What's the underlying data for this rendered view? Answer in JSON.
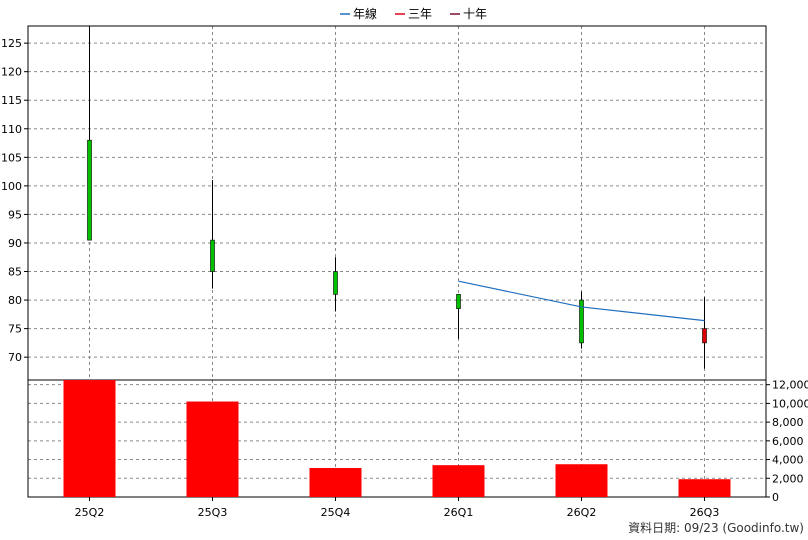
{
  "chart_data": {
    "type": "candlestick",
    "legend": [
      {
        "label": "年線",
        "color": "#1f6fbf"
      },
      {
        "label": "三年",
        "color": "#e0001b"
      },
      {
        "label": "十年",
        "color": "#7a1030"
      }
    ],
    "legend_position": "top-center",
    "grid": true,
    "categories": [
      "25Q2",
      "25Q3",
      "25Q4",
      "26Q1",
      "26Q2",
      "26Q3"
    ],
    "price_axis": {
      "ylim": [
        66,
        128
      ],
      "ticks": [
        70,
        75,
        80,
        85,
        90,
        95,
        100,
        105,
        110,
        115,
        120,
        125
      ]
    },
    "candles": [
      {
        "category": "25Q2",
        "open": 90.5,
        "high": 128,
        "low": 90.5,
        "close": 108,
        "color": "#00c000"
      },
      {
        "category": "25Q3",
        "open": 85,
        "high": 101,
        "low": 82,
        "close": 90.5,
        "color": "#00c000"
      },
      {
        "category": "25Q4",
        "open": 81,
        "high": 87.5,
        "low": 78,
        "close": 85,
        "color": "#00c000"
      },
      {
        "category": "26Q1",
        "open": 78.5,
        "high": 81,
        "low": 73.2,
        "close": 81,
        "color": "#00c000"
      },
      {
        "category": "26Q2",
        "open": 72.5,
        "high": 81.5,
        "low": 71.5,
        "close": 80,
        "color": "#00c000"
      },
      {
        "category": "26Q3",
        "open": 75,
        "high": 80.5,
        "low": 68,
        "close": 72.5,
        "color": "#e00000"
      }
    ],
    "year_line": {
      "name": "年線",
      "points": [
        {
          "category": "26Q1",
          "value": 83.3
        },
        {
          "category": "26Q2",
          "value": 78.8
        },
        {
          "category": "26Q3",
          "value": 76.4
        }
      ]
    },
    "volume_axis": {
      "ylim": [
        0,
        12500
      ],
      "ticks": [
        "0",
        "2,000",
        "4,000",
        "6,000",
        "8,000",
        "10,000",
        "12,000"
      ],
      "tick_values": [
        0,
        2000,
        4000,
        6000,
        8000,
        10000,
        12000
      ]
    },
    "volume": [
      12700,
      10200,
      3100,
      3400,
      3500,
      1900
    ],
    "volume_color": "#ff0000"
  },
  "footer": "資料日期: 09/23  (Goodinfo.tw)"
}
